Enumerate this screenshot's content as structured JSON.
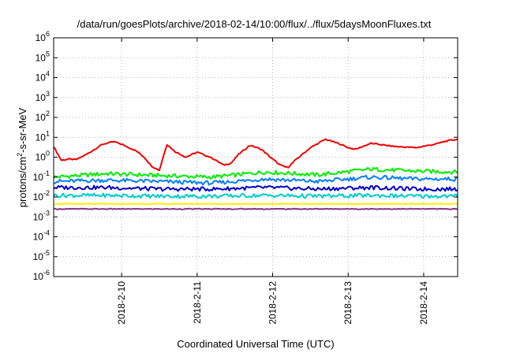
{
  "chart_data": {
    "type": "line",
    "title": "/data/run/goesPlots/archive/2018-02-14/10:00/flux/../flux/5daysMoonFluxes.txt",
    "xlabel": "Coordinated Universal Time (UTC)",
    "ylabel": {
      "pre": "protons/cm",
      "sup": "2",
      "post": "-s-sr-MeV"
    },
    "y_scale": "log",
    "ylim_exponent": [
      -6,
      6
    ],
    "xlim_days": [
      9.1,
      14.45
    ],
    "grid": true,
    "y_ticks": [
      {
        "base": "10",
        "exp": "-6",
        "e": -6
      },
      {
        "base": "10",
        "exp": "-5",
        "e": -5
      },
      {
        "base": "10",
        "exp": "-4",
        "e": -4
      },
      {
        "base": "10",
        "exp": "-3",
        "e": -3
      },
      {
        "base": "10",
        "exp": "-2",
        "e": -2
      },
      {
        "base": "10",
        "exp": "-1",
        "e": -1
      },
      {
        "base": "10",
        "exp": "0",
        "e": 0
      },
      {
        "base": "10",
        "exp": "1",
        "e": 1
      },
      {
        "base": "10",
        "exp": "2",
        "e": 2
      },
      {
        "base": "10",
        "exp": "3",
        "e": 3
      },
      {
        "base": "10",
        "exp": "4",
        "e": 4
      },
      {
        "base": "10",
        "exp": "5",
        "e": 5
      },
      {
        "base": "10",
        "exp": "6",
        "e": 6
      }
    ],
    "x_ticks": [
      {
        "label": "2018-2-10",
        "day": 10
      },
      {
        "label": "2018-2-11",
        "day": 11
      },
      {
        "label": "2018-2-12",
        "day": 12
      },
      {
        "label": "2018-2-13",
        "day": 13
      },
      {
        "label": "2018-2-14",
        "day": 14
      }
    ],
    "series": [
      {
        "color": "#ee0000",
        "day": [
          9.1,
          9.2,
          9.3,
          9.4,
          9.55,
          9.75,
          9.9,
          10.0,
          10.2,
          10.3,
          10.4,
          10.5,
          10.6,
          10.7,
          10.85,
          11.0,
          11.2,
          11.35,
          11.45,
          11.55,
          11.7,
          11.85,
          12.0,
          12.1,
          12.2,
          12.3,
          12.5,
          12.7,
          12.9,
          13.0,
          13.1,
          13.3,
          13.6,
          13.9,
          14.15,
          14.3,
          14.45
        ],
        "value": [
          3.5,
          0.7,
          0.8,
          0.75,
          1.5,
          4.5,
          6,
          4.5,
          2.0,
          1.0,
          0.35,
          0.22,
          4.5,
          2.0,
          1.0,
          1.8,
          0.9,
          0.4,
          0.5,
          1.4,
          4.0,
          2.5,
          0.8,
          0.4,
          0.3,
          0.7,
          3.0,
          8.0,
          4.5,
          3.0,
          2.5,
          5.0,
          3.5,
          3.0,
          4.5,
          6.5,
          8.0
        ]
      },
      {
        "color": "#00ee00",
        "day": [
          9.1,
          9.8,
          10.5,
          11.2,
          11.9,
          12.6,
          13.3,
          13.9,
          14.45
        ],
        "value": [
          0.1,
          0.15,
          0.12,
          0.1,
          0.18,
          0.13,
          0.25,
          0.2,
          0.18
        ]
      },
      {
        "color": "#0080ff",
        "day": [
          9.1,
          9.8,
          10.5,
          11.2,
          11.9,
          12.6,
          13.3,
          13.9,
          14.45
        ],
        "value": [
          0.06,
          0.07,
          0.06,
          0.05,
          0.08,
          0.06,
          0.1,
          0.08,
          0.08
        ]
      },
      {
        "color": "#0000cc",
        "day": [
          9.1,
          9.8,
          10.5,
          11.2,
          11.9,
          12.6,
          13.3,
          13.9,
          14.45
        ],
        "value": [
          0.03,
          0.03,
          0.025,
          0.025,
          0.03,
          0.025,
          0.03,
          0.025,
          0.025
        ]
      },
      {
        "color": "#00cccc",
        "day": [
          9.1,
          9.8,
          10.5,
          11.2,
          11.9,
          12.6,
          13.3,
          13.9,
          14.45
        ],
        "value": [
          0.012,
          0.012,
          0.011,
          0.011,
          0.012,
          0.011,
          0.012,
          0.011,
          0.011
        ]
      },
      {
        "color": "#ffee00",
        "day": [
          9.1,
          9.8,
          10.5,
          11.2,
          11.9,
          12.6,
          13.3,
          13.9,
          14.45
        ],
        "value": [
          0.0045,
          0.0045,
          0.0045,
          0.0045,
          0.0045,
          0.0045,
          0.0045,
          0.0045,
          0.0045
        ]
      },
      {
        "color": "#883388",
        "day": [
          9.1,
          9.8,
          10.5,
          11.2,
          11.9,
          12.6,
          13.3,
          13.9,
          14.45
        ],
        "value": [
          0.0025,
          0.0025,
          0.0025,
          0.0025,
          0.0025,
          0.0025,
          0.0025,
          0.0025,
          0.0025
        ]
      }
    ]
  }
}
